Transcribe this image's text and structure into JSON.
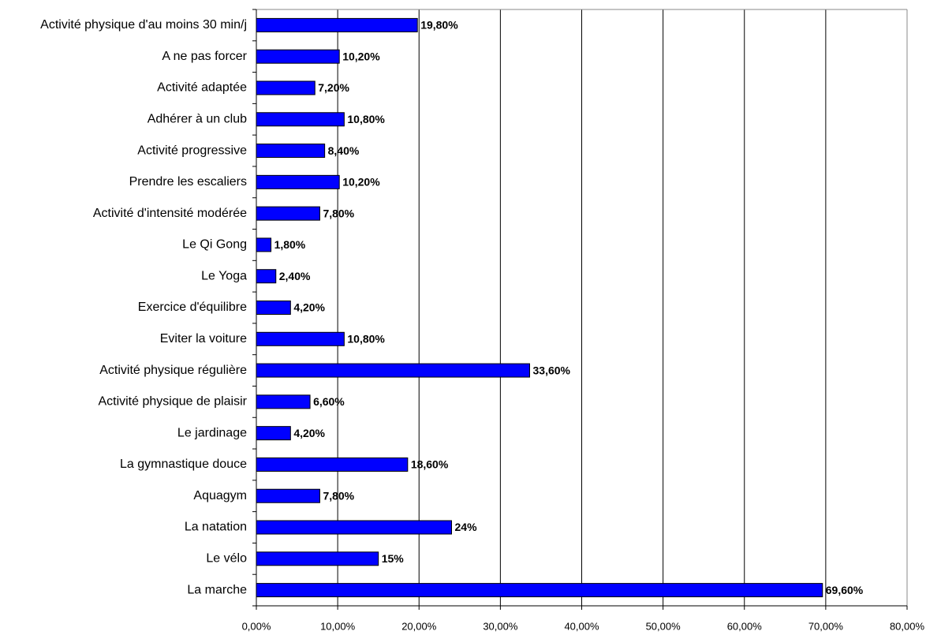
{
  "chart_data": {
    "type": "bar",
    "orientation": "horizontal",
    "categories": [
      "Activité physique d'au moins 30 min/j",
      "A ne pas forcer",
      "Activité adaptée",
      "Adhérer à un club",
      "Activité progressive",
      "Prendre les escaliers",
      "Activité d'intensité modérée",
      "Le Qi Gong",
      "Le Yoga",
      "Exercice d'équilibre",
      "Eviter la voiture",
      "Activité physique régulière",
      "Activité physique de plaisir",
      "Le jardinage",
      "La gymnastique douce",
      "Aquagym",
      "La natation",
      "Le vélo",
      "La marche"
    ],
    "values": [
      19.8,
      10.2,
      7.2,
      10.8,
      8.4,
      10.2,
      7.8,
      1.8,
      2.4,
      4.2,
      10.8,
      33.6,
      6.6,
      4.2,
      18.6,
      7.8,
      24,
      15,
      69.6
    ],
    "value_labels": [
      "19,80%",
      "10,20%",
      "7,20%",
      "10,80%",
      "8,40%",
      "10,20%",
      "7,80%",
      "1,80%",
      "2,40%",
      "4,20%",
      "10,80%",
      "33,60%",
      "6,60%",
      "4,20%",
      "18,60%",
      "7,80%",
      "24%",
      "15%",
      "69,60%"
    ],
    "color": "#0000ff",
    "xlim": [
      0,
      80
    ],
    "xticks": [
      {
        "value": 0,
        "label": "0,00%"
      },
      {
        "value": 10,
        "label": "10,00%"
      },
      {
        "value": 20,
        "label": "20,00%"
      },
      {
        "value": 30,
        "label": "30,00%"
      },
      {
        "value": 40,
        "label": "40,00%"
      },
      {
        "value": 50,
        "label": "50,00%"
      },
      {
        "value": 60,
        "label": "60,00%"
      },
      {
        "value": 70,
        "label": "70,00%"
      },
      {
        "value": 80,
        "label": "80,00%"
      }
    ],
    "grid": true
  }
}
